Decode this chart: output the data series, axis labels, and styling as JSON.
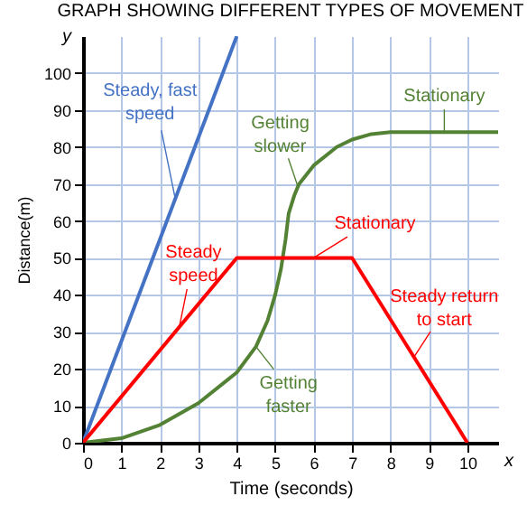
{
  "chart_data": {
    "type": "line",
    "title": "GRAPH SHOWING DIFFERENT TYPES OF MOVEMENT",
    "xlabel": "Time (seconds)",
    "ylabel": "Distance(m)",
    "xlim": [
      0,
      10.8
    ],
    "ylim": [
      0,
      110
    ],
    "xticks": [
      0,
      1,
      2,
      3,
      4,
      5,
      6,
      7,
      8,
      9,
      10
    ],
    "yticks": [
      0,
      10,
      20,
      30,
      40,
      50,
      60,
      70,
      80,
      90,
      100
    ],
    "grid": true,
    "series": [
      {
        "color": "#4472c4",
        "x": [
          0,
          4
        ],
        "values": [
          0,
          110
        ]
      },
      {
        "color": "#548235",
        "x": [
          0,
          1,
          2,
          3,
          4,
          4.5,
          4.8,
          5,
          5.15,
          5.27,
          5.35,
          5.5,
          5.62,
          6,
          6.6,
          7,
          7.5,
          8,
          10.8
        ],
        "values": [
          0,
          1.2,
          4.8,
          10.7,
          19,
          26,
          33,
          40,
          47,
          55,
          62,
          67,
          70,
          75,
          80,
          82,
          83.5,
          84,
          84
        ]
      },
      {
        "color": "#ff0000",
        "x": [
          0,
          4,
          7,
          10
        ],
        "values": [
          0,
          50,
          50,
          0
        ]
      }
    ],
    "annotations": [
      {
        "text": "Steady, fast\nspeed",
        "x": 2.4,
        "y": 66
      },
      {
        "text": "Getting\nslower",
        "x": 5.6,
        "y": 69
      },
      {
        "text": "Stationary",
        "x": 9.4,
        "y": 84
      },
      {
        "text": "Steady\nspeed",
        "x": 2.5,
        "y": 31
      },
      {
        "text": "Stationary",
        "x": 6,
        "y": 50
      },
      {
        "text": "Steady return\nto start",
        "x": 8.6,
        "y": 23
      },
      {
        "text": "Getting\nfaster",
        "x": 4.5,
        "y": 26
      },
      "y",
      "x"
    ]
  }
}
